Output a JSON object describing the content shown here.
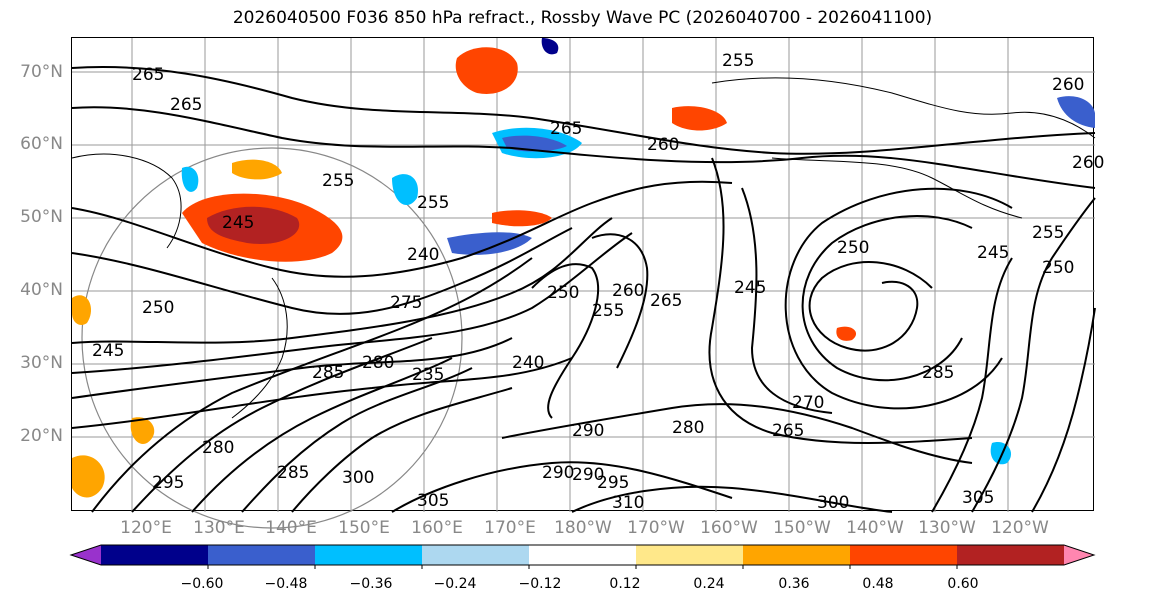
{
  "title": "2026040500 F036 850 hPa refract., Rossby Wave PC (2026040700 - 2026041100)",
  "lat_labels": [
    "70°N",
    "60°N",
    "50°N",
    "40°N",
    "30°N",
    "20°N"
  ],
  "lon_labels": [
    "120°E",
    "130°E",
    "140°E",
    "150°E",
    "160°E",
    "170°E",
    "180°W",
    "170°W",
    "160°W",
    "150°W",
    "140°W",
    "130°W",
    "120°W"
  ],
  "colorbar": {
    "colors": [
      "#9932cc",
      "#00008b",
      "#3a5fcd",
      "#00bfff",
      "#add8f0",
      "#ffffff",
      "#ffe88a",
      "#ffa500",
      "#ff4500",
      "#b22222",
      "#ff86b0"
    ],
    "ticks": [
      "−0.60",
      "−0.48",
      "−0.36",
      "−0.24",
      "−0.12",
      "0.12",
      "0.24",
      "0.36",
      "0.48",
      "0.60"
    ]
  },
  "contour_labels": [
    "265",
    "265",
    "255",
    "260",
    "255",
    "265",
    "260",
    "255",
    "240",
    "245",
    "250",
    "250",
    "245",
    "275",
    "280",
    "285",
    "290",
    "235",
    "240",
    "245",
    "250",
    "255",
    "260",
    "265",
    "255",
    "245",
    "250",
    "285",
    "280",
    "290",
    "295",
    "300",
    "305",
    "310",
    "305",
    "300",
    "285",
    "270",
    "265",
    "290",
    "295",
    "280",
    "260"
  ]
}
